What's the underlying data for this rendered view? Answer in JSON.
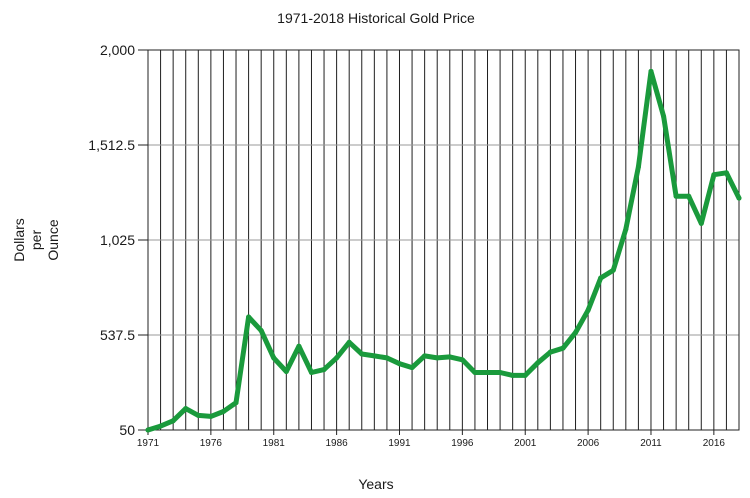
{
  "chart_data": {
    "type": "line",
    "title": "1971-2018 Historical Gold Price",
    "xlabel": "Years",
    "ylabel_lines": [
      "Dollars",
      "per",
      "Ounce"
    ],
    "xlim": [
      1971,
      2018
    ],
    "ylim": [
      50,
      2000
    ],
    "yticks": [
      50,
      537.5,
      1025,
      1512.5,
      2000
    ],
    "ytick_labels": [
      "50",
      "537.5",
      "1,025",
      "1,512.5",
      "2,000"
    ],
    "xticks": [
      1971,
      1976,
      1981,
      1986,
      1991,
      1996,
      2001,
      2006,
      2011,
      2016
    ],
    "xtick_labels": [
      "1971",
      "1976",
      "1981",
      "1986",
      "1991",
      "1996",
      "2001",
      "2006",
      "2011",
      "2016"
    ],
    "grid": "vertical lines every year, horizontal lines at each y tick",
    "line_color": "#1a9a3c",
    "series": [
      {
        "x": [
          1971,
          1972,
          1973,
          1974,
          1975,
          1976,
          1977,
          1978,
          1979,
          1980,
          1981,
          1982,
          1983,
          1984,
          1985,
          1986,
          1987,
          1988,
          1989,
          1990,
          1991,
          1992,
          1993,
          1994,
          1995,
          1996,
          1997,
          1998,
          1999,
          2000,
          2001,
          2002,
          2003,
          2004,
          2005,
          2006,
          2007,
          2008,
          2009,
          2010,
          2011,
          2012,
          2013,
          2014,
          2015,
          2016,
          2017,
          2018
        ],
        "values": [
          50,
          70,
          97,
          160,
          125,
          120,
          145,
          190,
          630,
          560,
          420,
          350,
          480,
          345,
          360,
          420,
          500,
          440,
          430,
          420,
          390,
          370,
          430,
          420,
          425,
          410,
          345,
          345,
          345,
          330,
          330,
          395,
          450,
          470,
          550,
          665,
          830,
          870,
          1080,
          1400,
          1890,
          1660,
          1250,
          1250,
          1110,
          1360,
          1370,
          1240
        ]
      }
    ]
  }
}
